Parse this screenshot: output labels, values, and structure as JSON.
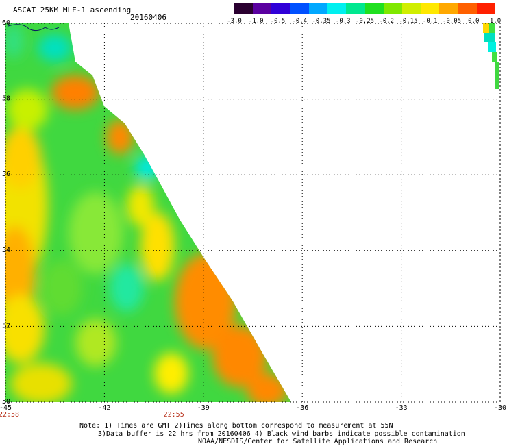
{
  "header": {
    "title": "ASCAT 25KM MLE-1 ascending",
    "date": "20160406"
  },
  "colorbar": {
    "labels": [
      "-3.0",
      "-1.0",
      "-0.5",
      "-0.4",
      "-0.35",
      "-0.3",
      "-0.25",
      "-0.2",
      "-0.15",
      "-0.1",
      "-0.05",
      "0.0",
      "1.0"
    ],
    "colors": [
      "#2a0030",
      "#5a00a0",
      "#3000d8",
      "#0050ff",
      "#00a8ff",
      "#00f0f0",
      "#00e890",
      "#20e020",
      "#80e800",
      "#d0ee00",
      "#ffe800",
      "#ffa800",
      "#ff6000",
      "#ff2000"
    ]
  },
  "axes": {
    "lon_ticks": [
      "-45",
      "-42",
      "-39",
      "-36",
      "-33",
      "-30"
    ],
    "lat_ticks": [
      "60",
      "58",
      "56",
      "54",
      "52",
      "50"
    ],
    "lon_range": [
      -45,
      -30
    ],
    "lat_range": [
      50,
      60
    ]
  },
  "swath": {
    "edge_points": [
      [
        -42.0,
        58.0
      ],
      [
        -39.0,
        54.0
      ],
      [
        -36.0,
        50.0
      ]
    ],
    "start_lon": -45,
    "start_lat": 60
  },
  "times": [
    {
      "label": "22:58",
      "lon": -45
    },
    {
      "label": "22:55",
      "lon": -40
    }
  ],
  "notes": {
    "line1": "Note: 1) Times are GMT 2)Times along bottom correspond to measurement at 55N",
    "line2": "3)Data buffer is 22 hrs from 20160406 4) Black wind barbs indicate possible contamination",
    "line3": "NOAA/NESDIS/Center for Satellite Applications and Research"
  }
}
